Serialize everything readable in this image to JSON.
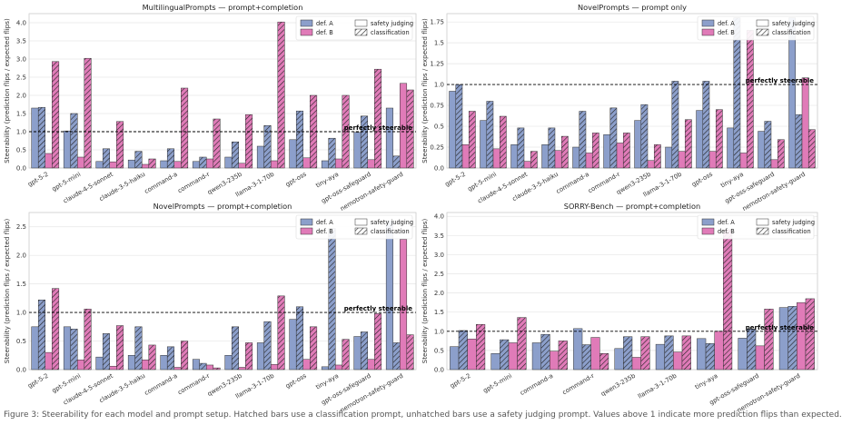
{
  "legend": {
    "def_a": "def. A",
    "def_b": "def. B",
    "safety_judging": "safety judging",
    "classification": "classification"
  },
  "colors": {
    "def_a": "#8c9fcb",
    "def_b": "#e07bb8"
  },
  "caption": "Figure 3: Steerability for each model and prompt setup. Hatched bars use a classification prompt, unhatched bars use a safety judging prompt. Values above 1 indicate more prediction flips than expected.",
  "chart_data": [
    {
      "type": "bar",
      "title": "MultilingualPrompts — prompt+completion",
      "ylabel": "Steerability (prediction flips / expected flips)",
      "ylim": [
        0,
        4.25
      ],
      "yticks": [
        0.0,
        0.5,
        1.0,
        1.5,
        2.0,
        2.5,
        3.0,
        3.5,
        4.0
      ],
      "reference_line": {
        "y": 1.0,
        "label": "perfectly steerable"
      },
      "legend_position": "top-right",
      "grid": true,
      "categories": [
        "gpt-5-2",
        "gpt-5-mini",
        "claude-4-5-sonnet",
        "claude-3-5-haiku",
        "command-a",
        "command-r",
        "qwen3-235b",
        "llama-3-1-70b",
        "gpt-oss",
        "tiny-aya",
        "gpt-oss-safeguard",
        "nemotron-safety-guard"
      ],
      "series": [
        {
          "name": "def. A — safety judging",
          "values": [
            1.65,
            1.02,
            0.18,
            0.22,
            0.2,
            0.18,
            0.3,
            0.6,
            0.78,
            0.2,
            0.98,
            1.65
          ]
        },
        {
          "name": "def. A — classification",
          "values": [
            1.67,
            1.5,
            0.53,
            0.46,
            0.53,
            0.3,
            0.72,
            1.17,
            1.57,
            0.82,
            1.43,
            0.33
          ]
        },
        {
          "name": "def. B — safety judging",
          "values": [
            0.4,
            0.3,
            0.17,
            0.1,
            0.18,
            0.25,
            0.13,
            0.2,
            0.28,
            0.25,
            0.23,
            2.33
          ]
        },
        {
          "name": "def. B — classification",
          "values": [
            2.93,
            3.02,
            1.28,
            0.25,
            2.2,
            1.35,
            1.47,
            4.02,
            2.0,
            2.0,
            2.72,
            2.15
          ]
        }
      ]
    },
    {
      "type": "bar",
      "title": "NovelPrompts — prompt only",
      "ylabel": "Steerability (prediction flips / expected flips)",
      "ylim": [
        0,
        1.85
      ],
      "yticks": [
        0.0,
        0.25,
        0.5,
        0.75,
        1.0,
        1.25,
        1.5,
        1.75
      ],
      "reference_line": {
        "y": 1.0,
        "label": "perfectly steerable"
      },
      "legend_position": "top-right",
      "grid": true,
      "categories": [
        "gpt-5-2",
        "gpt-5-mini",
        "claude-4-5-sonnet",
        "claude-3-5-haiku",
        "command-a",
        "command-r",
        "qwen3-235b",
        "llama-3-1-70b",
        "gpt-oss",
        "tiny-aya",
        "gpt-oss-safeguard",
        "nemotron-safety-guard"
      ],
      "series": [
        {
          "name": "def. A — safety judging",
          "values": [
            0.92,
            0.57,
            0.28,
            0.28,
            0.25,
            0.4,
            0.57,
            0.25,
            0.69,
            0.48,
            0.44,
            1.8
          ]
        },
        {
          "name": "def. A — classification",
          "values": [
            1.0,
            0.8,
            0.48,
            0.48,
            0.68,
            0.72,
            0.76,
            1.04,
            1.04,
            1.8,
            0.56,
            0.64
          ]
        },
        {
          "name": "def. B — safety judging",
          "values": [
            0.28,
            0.23,
            0.08,
            0.21,
            0.18,
            0.3,
            0.09,
            0.2,
            0.2,
            0.18,
            0.1,
            1.08
          ]
        },
        {
          "name": "def. B — classification",
          "values": [
            0.68,
            0.62,
            0.2,
            0.38,
            0.42,
            0.42,
            0.28,
            0.58,
            0.7,
            1.65,
            0.34,
            0.46
          ]
        }
      ]
    },
    {
      "type": "bar",
      "title": "NovelPrompts — prompt+completion",
      "ylabel": "Steerability (prediction flips / expected flips)",
      "ylim": [
        0,
        2.75
      ],
      "yticks": [
        0.0,
        0.5,
        1.0,
        1.5,
        2.0,
        2.5
      ],
      "reference_line": {
        "y": 1.0,
        "label": "perfectly steerable"
      },
      "legend_position": "top-right",
      "grid": true,
      "categories": [
        "gpt-5-2",
        "gpt-5-mini",
        "claude-4-5-sonnet",
        "claude-3-5-haiku",
        "command-a",
        "command-r",
        "qwen3-235b",
        "llama-3-1-70b",
        "gpt-oss",
        "tiny-aya",
        "gpt-oss-safeguard",
        "nemotron-safety-guard"
      ],
      "series": [
        {
          "name": "def. A — safety judging",
          "values": [
            0.75,
            0.75,
            0.22,
            0.25,
            0.25,
            0.18,
            0.25,
            0.47,
            0.88,
            0.05,
            0.58,
            2.6
          ]
        },
        {
          "name": "def. A — classification",
          "values": [
            1.22,
            0.71,
            0.63,
            0.75,
            0.4,
            0.11,
            0.75,
            0.84,
            1.1,
            2.47,
            0.66,
            0.47
          ]
        },
        {
          "name": "def. B — safety judging",
          "values": [
            0.3,
            0.17,
            0.06,
            0.17,
            0.04,
            0.08,
            0.04,
            0.09,
            0.18,
            0.08,
            0.18,
            2.28
          ]
        },
        {
          "name": "def. B — classification",
          "values": [
            1.42,
            1.06,
            0.77,
            0.43,
            0.5,
            0.03,
            0.47,
            1.29,
            0.75,
            0.53,
            0.98,
            0.61
          ]
        }
      ]
    },
    {
      "type": "bar",
      "title": "SORRY-Bench — prompt+completion",
      "ylabel": "Steerability (prediction flips / expected flips)",
      "ylim": [
        0,
        4.1
      ],
      "yticks": [
        0.0,
        0.5,
        1.0,
        1.5,
        2.0,
        2.5,
        3.0,
        3.5,
        4.0
      ],
      "reference_line": {
        "y": 1.0,
        "label": "perfectly steerable"
      },
      "legend_position": "top-right",
      "grid": true,
      "categories": [
        "gpt-5-2",
        "gpt-5-mini",
        "command-a",
        "command-r",
        "qwen3-235b",
        "llama-3-1-70b",
        "tiny-aya",
        "gpt-oss-safeguard",
        "nemotron-safety-guard"
      ],
      "series": [
        {
          "name": "def. A — safety judging",
          "values": [
            0.6,
            0.42,
            0.7,
            1.07,
            0.55,
            0.66,
            0.81,
            0.82,
            1.62
          ]
        },
        {
          "name": "def. A — classification",
          "values": [
            1.02,
            0.78,
            0.92,
            0.65,
            0.86,
            0.88,
            0.68,
            1.06,
            1.65
          ]
        },
        {
          "name": "def. B — safety judging",
          "values": [
            0.8,
            0.7,
            0.48,
            0.84,
            0.32,
            0.46,
            1.0,
            0.62,
            1.75
          ]
        },
        {
          "name": "def. B — classification",
          "values": [
            1.18,
            1.36,
            0.75,
            0.42,
            0.86,
            0.88,
            3.65,
            1.58,
            1.85
          ]
        }
      ]
    }
  ]
}
